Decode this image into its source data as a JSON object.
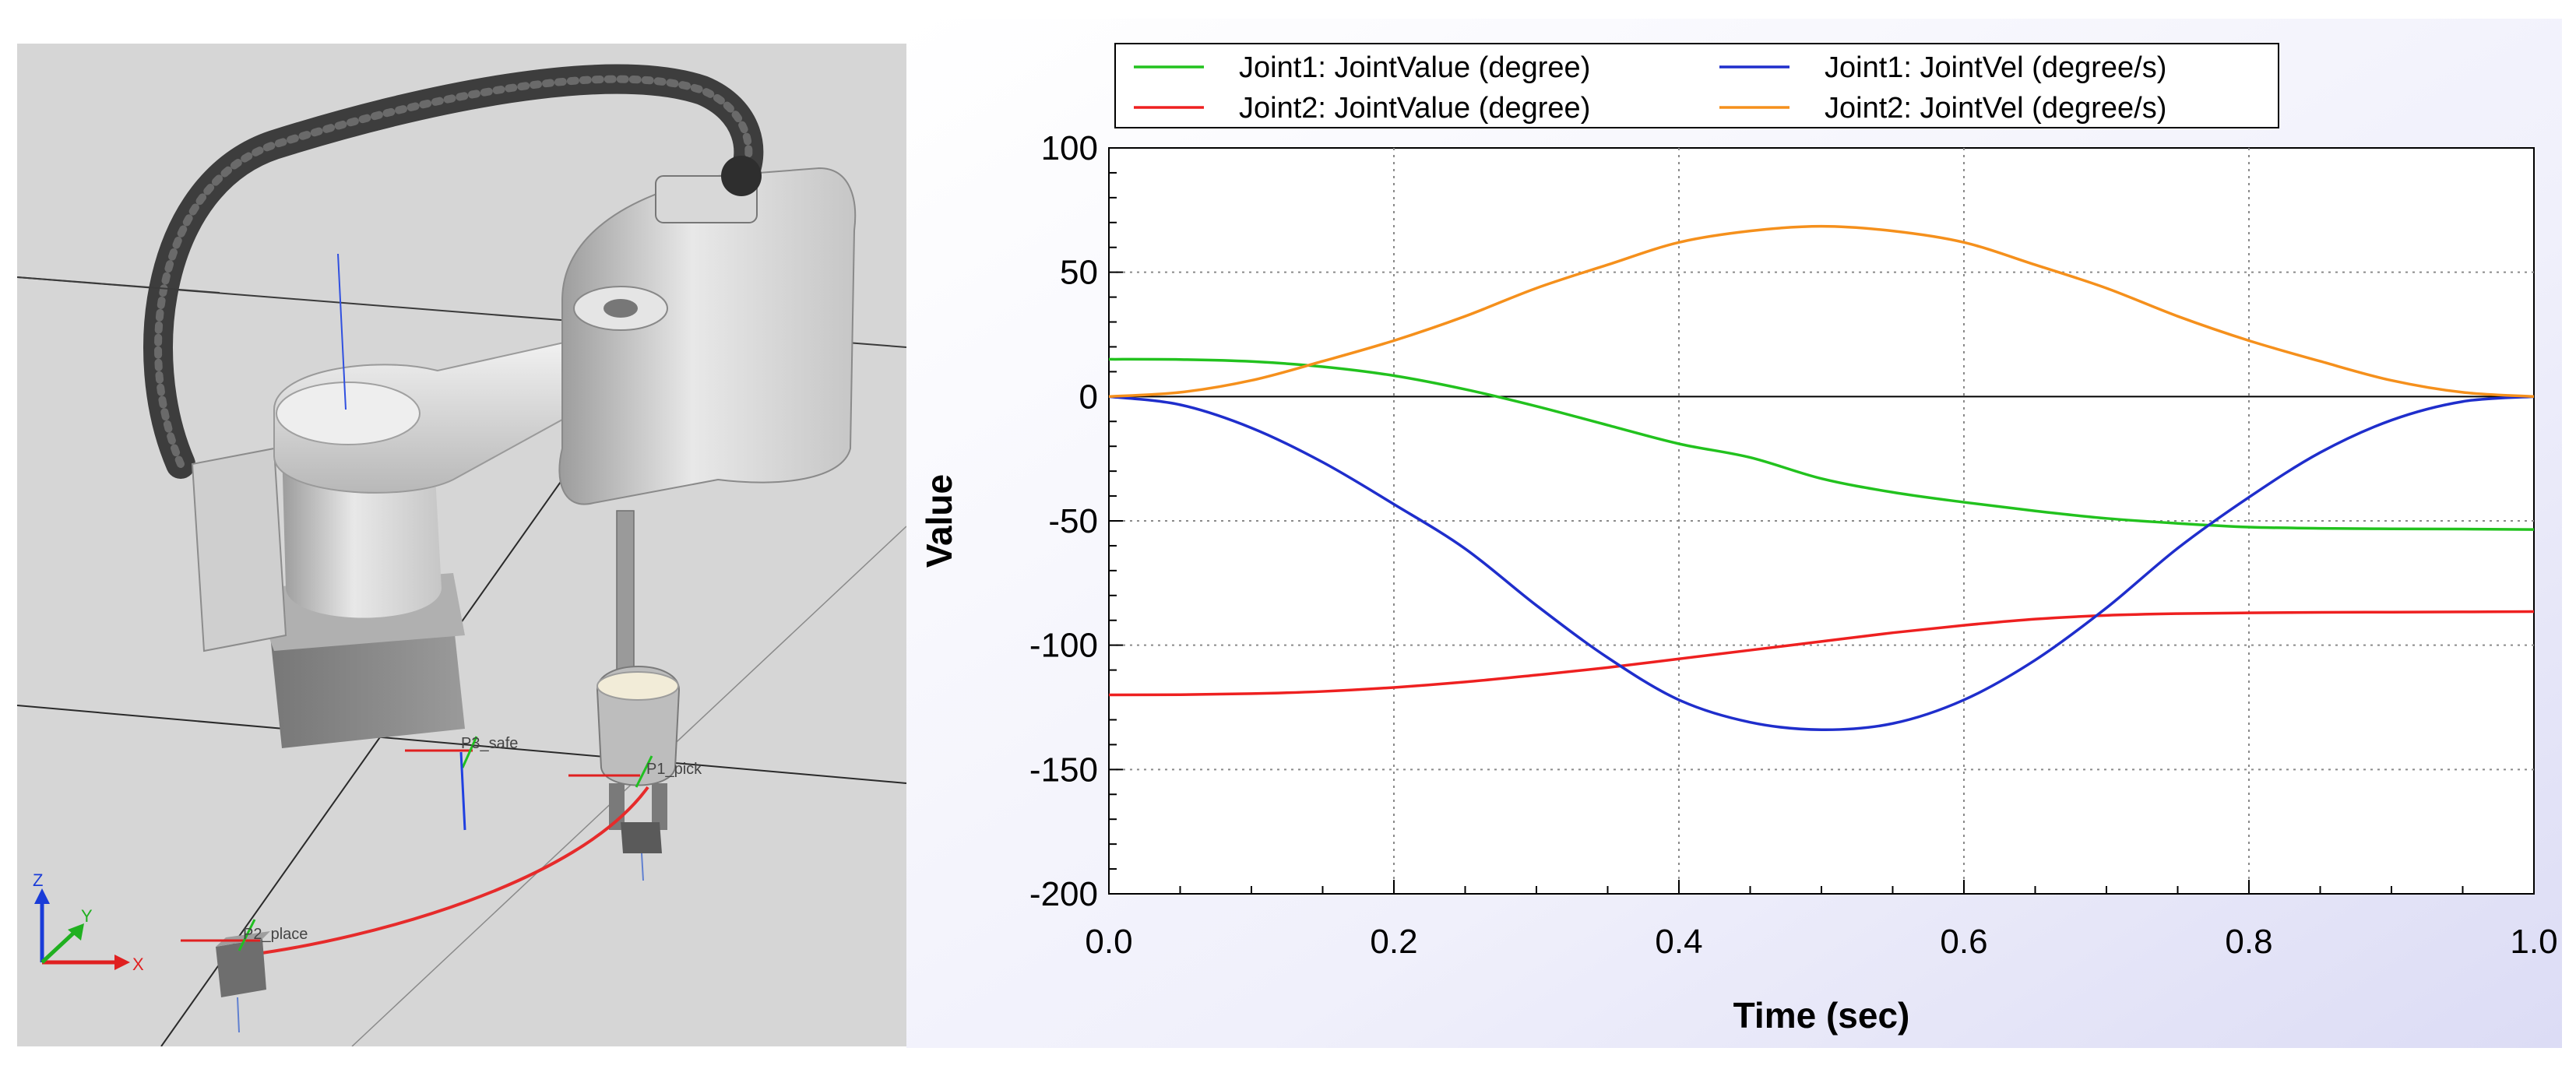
{
  "scene": {
    "labels": {
      "p3": "P3_safe",
      "p1": "P1_pick",
      "p2": "P2_place"
    },
    "axes_gizmo": {
      "z": "Z",
      "y": "Y",
      "x": "X"
    },
    "colors": {
      "background": "#d4d4d4",
      "path": "#e62b2b"
    }
  },
  "chart_data": {
    "type": "line",
    "xlabel": "Time (sec)",
    "ylabel": "Value",
    "xlim": [
      0.0,
      1.0
    ],
    "ylim": [
      -200,
      100
    ],
    "xticks": [
      0.0,
      0.2,
      0.4,
      0.6,
      0.8,
      1.0
    ],
    "xtick_labels": [
      "0.0",
      "0.2",
      "0.4",
      "0.6",
      "0.8",
      "1.0"
    ],
    "yticks": [
      100,
      50,
      0,
      -50,
      -100,
      -150,
      -200
    ],
    "ytick_labels": [
      "100",
      "50",
      "0",
      "-50",
      "-100",
      "-150",
      "-200"
    ],
    "grid": true,
    "legend_position": "top",
    "x": [
      0.0,
      0.05,
      0.1,
      0.15,
      0.2,
      0.25,
      0.3,
      0.35,
      0.4,
      0.45,
      0.5,
      0.55,
      0.6,
      0.65,
      0.7,
      0.75,
      0.8,
      0.85,
      0.9,
      0.95,
      1.0
    ],
    "series": [
      {
        "name": "Joint1: JointValue (degree)",
        "color": "#22c21e",
        "values": [
          15.0,
          14.9,
          14.1,
          12.0,
          8.4,
          2.9,
          -3.9,
          -11.5,
          -19.0,
          -24.5,
          -33.0,
          -38.5,
          -42.5,
          -46.0,
          -49.0,
          -51.0,
          -52.5,
          -53.0,
          -53.2,
          -53.3,
          -53.5
        ]
      },
      {
        "name": "Joint2: JointValue (degree)",
        "color": "#ee2020",
        "values": [
          -120.0,
          -119.9,
          -119.5,
          -118.6,
          -117.0,
          -114.8,
          -112.0,
          -109.0,
          -105.5,
          -102.0,
          -98.5,
          -95.0,
          -92.0,
          -89.5,
          -88.0,
          -87.3,
          -87.0,
          -86.8,
          -86.7,
          -86.6,
          -86.5
        ]
      },
      {
        "name": "Joint1: JointVel (degree/s)",
        "color": "#1f2ecc",
        "values": [
          0.0,
          -3.3,
          -12.6,
          -26.4,
          -43.3,
          -61.2,
          -84.0,
          -105.0,
          -122.0,
          -131.0,
          -134.0,
          -131.5,
          -122.0,
          -106.0,
          -85.0,
          -61.0,
          -40.5,
          -22.5,
          -9.5,
          -2.0,
          0.0
        ]
      },
      {
        "name": "Joint2: JointVel (degree/s)",
        "color": "#f5901c",
        "values": [
          0.0,
          1.7,
          6.5,
          14.2,
          22.5,
          32.3,
          43.6,
          53.0,
          62.0,
          66.6,
          68.5,
          66.6,
          62.0,
          53.0,
          43.6,
          32.3,
          22.5,
          14.2,
          6.5,
          1.7,
          0.0
        ]
      }
    ]
  }
}
